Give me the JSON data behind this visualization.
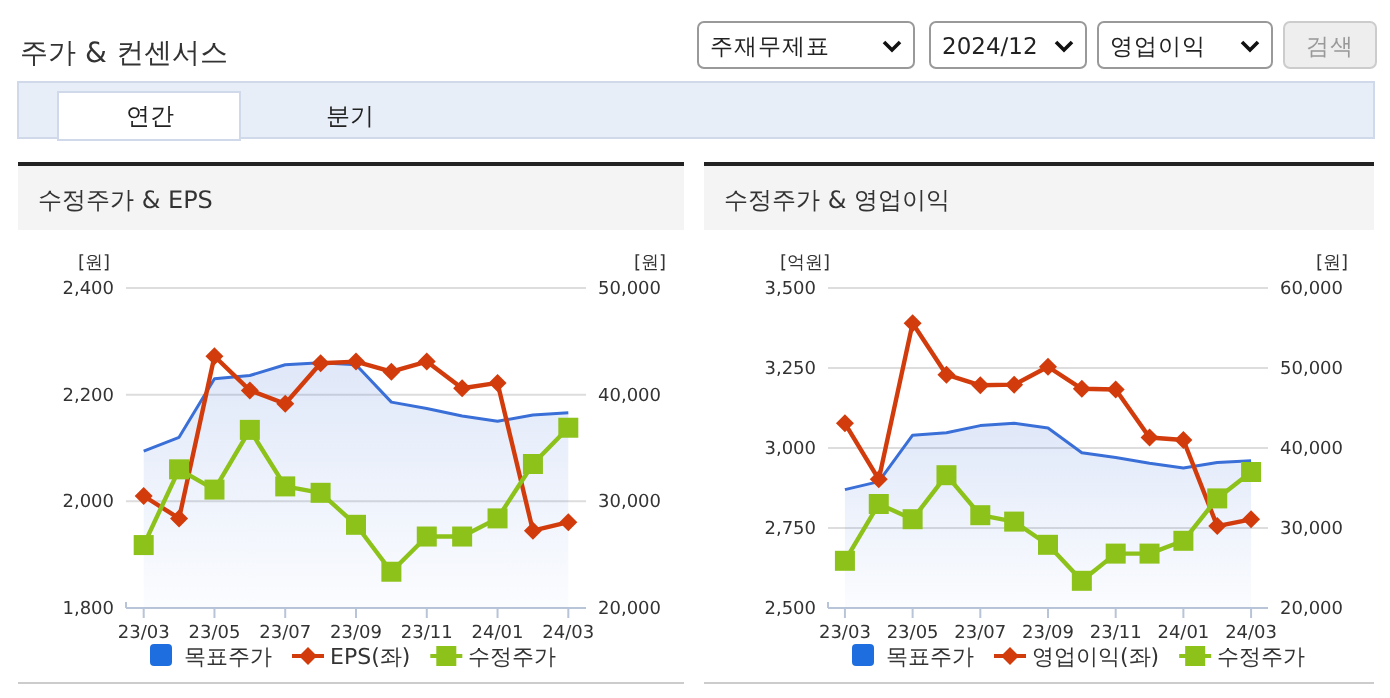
{
  "chart_data": [
    {
      "type": "line",
      "title": "수정주가 & EPS",
      "ylabel": "[원]",
      "y2label": "[원]",
      "grid": "y",
      "legend": "bottom",
      "annotations": [
        "주가 & 컨센서스",
        "주재무제표",
        "2024/12",
        "영업이익",
        "검색",
        "연간",
        "분기"
      ],
      "categories": [
        "23/03",
        null,
        "23/05",
        null,
        "23/07",
        null,
        "23/09",
        null,
        "23/11",
        null,
        "24/01",
        null,
        "24/03"
      ],
      "ylim": [
        1800,
        2400
      ],
      "yticks": [
        {
          "value": 1800,
          "label": "1,800"
        },
        {
          "value": 2000,
          "label": "2,000"
        },
        {
          "value": 2200,
          "label": "2,200"
        },
        {
          "value": 2400,
          "label": "2,400"
        }
      ],
      "y2lim": [
        20000,
        50000
      ],
      "y2ticks": [
        {
          "value": 20000,
          "label": "20,000"
        },
        {
          "value": 30000,
          "label": "30,000"
        },
        {
          "value": 40000,
          "label": "40,000"
        },
        {
          "value": 50000,
          "label": "50,000"
        }
      ],
      "series": [
        {
          "name": "목표주가",
          "type": "area",
          "axis": "y2",
          "marker": "none",
          "color": "#3a6fd8",
          "values": [
            34700,
            36000,
            41500,
            41800,
            42800,
            43000,
            42800,
            39300,
            38700,
            38000,
            37500,
            38100,
            38300
          ]
        },
        {
          "name": "EPS(좌)",
          "type": "line",
          "marker": "diamond",
          "color": "#d23c0c",
          "values": [
            2010,
            1968,
            2272,
            2208,
            2183,
            2259,
            2262,
            2243,
            2262,
            2212,
            2222,
            1945,
            1961
          ]
        },
        {
          "name": "수정주가",
          "type": "line",
          "axis": "y2",
          "marker": "square",
          "color": "#8cc21a",
          "values": [
            25900,
            33000,
            31100,
            36700,
            31400,
            30800,
            27800,
            23400,
            26700,
            26700,
            28400,
            33500,
            36900
          ]
        }
      ]
    },
    {
      "type": "line",
      "title": "수정주가 & 영업이익",
      "ylabel": "[억원]",
      "y2label": "[원]",
      "grid": "y",
      "legend": "bottom",
      "categories": [
        "23/03",
        null,
        "23/05",
        null,
        "23/07",
        null,
        "23/09",
        null,
        "23/11",
        null,
        "24/01",
        null,
        "24/03"
      ],
      "ylim": [
        2500,
        3500
      ],
      "yticks": [
        {
          "value": 2500,
          "label": "2,500"
        },
        {
          "value": 2750,
          "label": "2,750"
        },
        {
          "value": 3000,
          "label": "3,000"
        },
        {
          "value": 3250,
          "label": "3,250"
        },
        {
          "value": 3500,
          "label": "3,500"
        }
      ],
      "y2lim": [
        20000,
        60000
      ],
      "y2ticks": [
        {
          "value": 20000,
          "label": "20,000"
        },
        {
          "value": 30000,
          "label": "30,000"
        },
        {
          "value": 40000,
          "label": "40,000"
        },
        {
          "value": 50000,
          "label": "50,000"
        },
        {
          "value": 60000,
          "label": "60,000"
        }
      ],
      "series": [
        {
          "name": "목표주가",
          "type": "area",
          "axis": "y2",
          "marker": "none",
          "color": "#3a6fd8",
          "values": [
            34800,
            35800,
            41600,
            41900,
            42800,
            43100,
            42500,
            39400,
            38800,
            38100,
            37500,
            38200,
            38400
          ]
        },
        {
          "name": "영업이익(좌)",
          "type": "line",
          "marker": "diamond",
          "color": "#d23c0c",
          "values": [
            3077,
            2902,
            3390,
            3229,
            3196,
            3198,
            3254,
            3185,
            3183,
            3033,
            3025,
            2756,
            2777
          ]
        },
        {
          "name": "수정주가",
          "type": "line",
          "axis": "y2",
          "marker": "square",
          "color": "#8cc21a",
          "values": [
            25900,
            33000,
            31100,
            36600,
            31600,
            30800,
            27900,
            23400,
            26800,
            26800,
            28400,
            33700,
            37000
          ]
        }
      ]
    }
  ]
}
